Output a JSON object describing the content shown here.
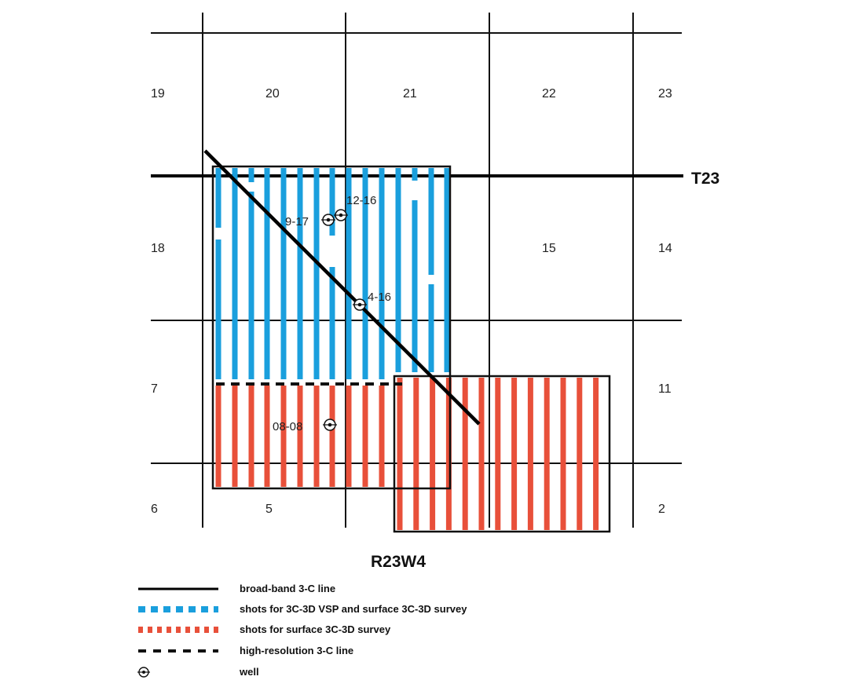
{
  "township_label": "T23",
  "range_label": "R23W4",
  "colors": {
    "grid": "#111111",
    "broadband_line": "#000000",
    "vsp_shots": "#1a9fdd",
    "surface_shots": "#e8503a",
    "hires_line": "#111111"
  },
  "sections": {
    "s19": "19",
    "s20": "20",
    "s21": "21",
    "s22": "22",
    "s23": "23",
    "s18": "18",
    "s15": "15",
    "s14": "14",
    "s7": "7",
    "s11": "11",
    "s6": "6",
    "s5": "5",
    "s2": "2"
  },
  "wells": {
    "w1216": "12-16",
    "w917": "9-17",
    "w416": "4-16",
    "w0808": "08-08"
  },
  "legend": {
    "broadband": "broad-band 3-C line",
    "vsp": "shots for 3C-3D VSP and surface 3C-3D survey",
    "surface": "shots for surface 3C-3D survey",
    "hires": "high-resolution 3-C line",
    "well": "well"
  },
  "icons": {
    "well_symbol": "well-icon"
  }
}
